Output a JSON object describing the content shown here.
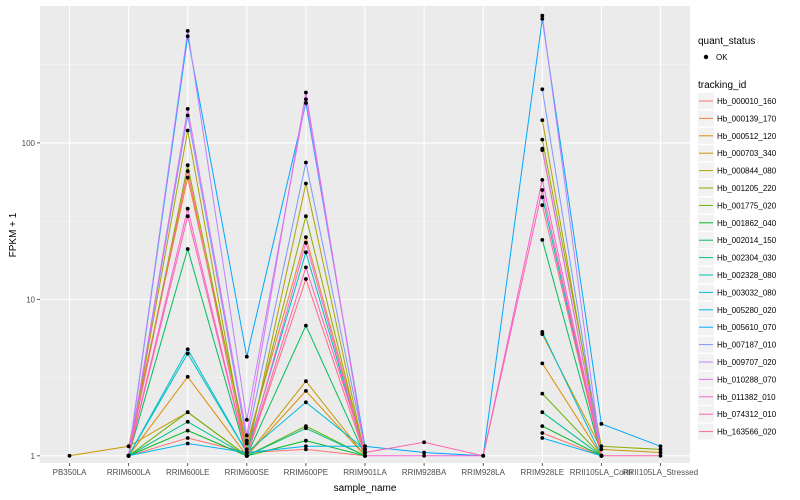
{
  "chart_data": {
    "type": "line",
    "xlabel": "sample_name",
    "ylabel": "FPKM + 1",
    "y_scale": "log10",
    "ylim": [
      0.9,
      750
    ],
    "y_ticks": [
      {
        "value": 1,
        "label": "1"
      },
      {
        "value": 10,
        "label": "10"
      },
      {
        "value": 100,
        "label": "100"
      }
    ],
    "categories": [
      "PB350LA",
      "RRIM600LA",
      "RRIM600LE",
      "RRIM600SE",
      "RRIM600PE",
      "RRIM901LA",
      "RRIM928BA",
      "RRIM928LA",
      "RRIM928LE",
      "RRII105LA_Control",
      "RRII105LA_Stressed"
    ],
    "x_tick_labels": [
      "PB350LA",
      "RRIM600LA",
      "RRIM600LE",
      "RRIM600SE",
      "RRIM600PE",
      "RRIM901LA",
      "RRIM928BA",
      "RRIM928LA",
      "RRIM928LE",
      "RRII105LA_Contr",
      "RRII105LA_Stressed"
    ],
    "panel_background": "#ebebeb",
    "grid": true,
    "legend_position": "right",
    "quant_status_legend": {
      "title": "quant_status",
      "items": [
        "OK"
      ]
    },
    "series_legend_title": "tracking_id",
    "series": [
      {
        "name": "Hb_000010_160",
        "color": "#f8766d",
        "values": [
          null,
          1.0,
          1.3,
          1.05,
          1.1,
          1.0,
          null,
          null,
          1.4,
          1.0,
          null
        ]
      },
      {
        "name": "Hb_000139_170",
        "color": "#ec8239",
        "values": [
          null,
          1.15,
          60,
          1.2,
          25,
          1.05,
          null,
          null,
          90,
          1.0,
          null
        ]
      },
      {
        "name": "Hb_000512_120",
        "color": "#db8e00",
        "values": [
          null,
          1.0,
          3.2,
          1.0,
          2.6,
          1.0,
          null,
          null,
          3.9,
          1.0,
          null
        ]
      },
      {
        "name": "Hb_000703_340",
        "color": "#c79800",
        "values": [
          1.0,
          1.15,
          1.9,
          1.0,
          3.0,
          1.0,
          null,
          null,
          6.0,
          1.1,
          1.05
        ]
      },
      {
        "name": "Hb_000844_080",
        "color": "#aea200",
        "values": [
          null,
          1.0,
          120,
          1.0,
          55,
          1.0,
          null,
          null,
          140,
          1.0,
          null
        ]
      },
      {
        "name": "Hb_001205_220",
        "color": "#8fab00",
        "values": [
          null,
          1.0,
          72,
          1.1,
          34,
          1.0,
          null,
          null,
          105,
          1.15,
          1.1
        ]
      },
      {
        "name": "Hb_001775_020",
        "color": "#64b200",
        "values": [
          null,
          1.0,
          1.9,
          1.0,
          1.55,
          1.0,
          null,
          null,
          2.5,
          1.0,
          null
        ]
      },
      {
        "name": "Hb_001862_040",
        "color": "#00b81b",
        "values": [
          null,
          1.0,
          1.45,
          1.0,
          1.25,
          1.0,
          null,
          null,
          1.55,
          1.0,
          null
        ]
      },
      {
        "name": "Hb_002014_150",
        "color": "#00bd5c",
        "values": [
          null,
          1.0,
          21,
          1.0,
          6.8,
          1.0,
          null,
          null,
          24,
          1.0,
          null
        ]
      },
      {
        "name": "Hb_002304_030",
        "color": "#00c08e",
        "values": [
          null,
          1.0,
          1.65,
          1.0,
          1.5,
          1.0,
          null,
          null,
          1.9,
          1.0,
          null
        ]
      },
      {
        "name": "Hb_002328_080",
        "color": "#00c1b7",
        "values": [
          null,
          1.0,
          4.5,
          1.05,
          20,
          1.0,
          null,
          null,
          45,
          1.0,
          null
        ]
      },
      {
        "name": "Hb_003032_080",
        "color": "#00bdd4",
        "values": [
          null,
          1.0,
          4.8,
          1.05,
          2.2,
          1.1,
          null,
          null,
          6.2,
          1.0,
          null
        ]
      },
      {
        "name": "Hb_005280_020",
        "color": "#00b5ee",
        "values": [
          null,
          1.0,
          1.2,
          1.05,
          1.15,
          1.15,
          null,
          null,
          1.3,
          1.0,
          null
        ]
      },
      {
        "name": "Hb_005610_070",
        "color": "#00a7ff",
        "values": [
          null,
          1.0,
          480,
          4.3,
          180,
          1.15,
          1.05,
          1.0,
          620,
          1.6,
          1.15
        ]
      },
      {
        "name": "Hb_007187_010",
        "color": "#7f96ff",
        "values": [
          null,
          1.0,
          150,
          1.25,
          75,
          1.1,
          null,
          null,
          220,
          1.0,
          null
        ]
      },
      {
        "name": "Hb_009707_020",
        "color": "#bc81ff",
        "values": [
          null,
          1.0,
          520,
          1.7,
          190,
          1.1,
          null,
          null,
          650,
          1.0,
          null
        ]
      },
      {
        "name": "Hb_010288_070",
        "color": "#e26eef",
        "values": [
          null,
          1.0,
          165,
          1.35,
          210,
          1.05,
          null,
          null,
          92,
          1.0,
          null
        ]
      },
      {
        "name": "Hb_011382_010",
        "color": "#f863d0",
        "values": [
          null,
          1.0,
          38,
          1.0,
          23,
          1.0,
          1.0,
          1.0,
          58,
          1.0,
          null
        ]
      },
      {
        "name": "Hb_074312_010",
        "color": "#ff62ad",
        "values": [
          null,
          1.0,
          34,
          1.0,
          16,
          1.05,
          1.22,
          1.0,
          50,
          1.0,
          1.0
        ]
      },
      {
        "name": "Hb_163566_020",
        "color": "#ff6a88",
        "values": [
          null,
          1.0,
          66,
          1.0,
          13.5,
          1.0,
          null,
          null,
          40,
          1.0,
          null
        ]
      }
    ]
  }
}
